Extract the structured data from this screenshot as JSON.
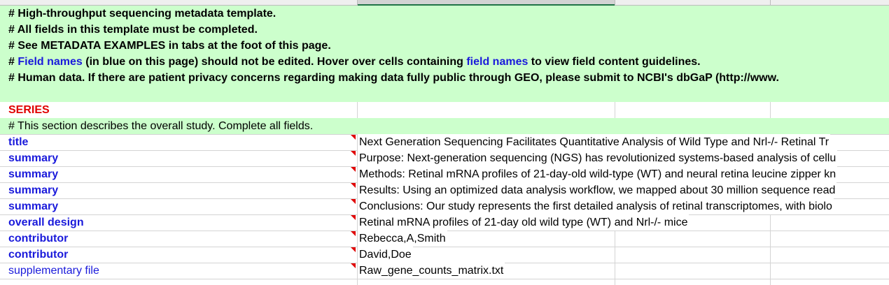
{
  "notes": [
    [
      "# High-throughput sequencing metadata template."
    ],
    [
      "# All fields in this template must be completed."
    ],
    [
      "# See METADATA EXAMPLES in tabs at the foot of this page."
    ],
    [
      "# ",
      "Field names",
      " (in blue on this page) should not be edited. Hover over cells containing ",
      "field names",
      " to view field content guidelines."
    ],
    [
      "# Human data. If there are patient privacy concerns regarding making data fully public through GEO, please submit to NCBI's dbGaP (http://www."
    ]
  ],
  "section": "SERIES",
  "section_note": "# This section describes the overall study. Complete all fields.",
  "fields": [
    {
      "name": "title",
      "value": "Next Generation Sequencing Facilitates Quantitative Analysis of Wild Type and Nrl-/- Retinal Tr"
    },
    {
      "name": "summary",
      "value": "Purpose: Next-generation sequencing (NGS) has revolutionized systems-based analysis of cellu"
    },
    {
      "name": "summary",
      "value": "Methods: Retinal mRNA profiles of 21-day-old wild-type (WT) and neural retina leucine zipper kn"
    },
    {
      "name": "summary",
      "value": "Results: Using an optimized data analysis workflow, we mapped about 30 million sequence read"
    },
    {
      "name": "summary",
      "value": "Conclusions: Our study represents the first detailed analysis of retinal transcriptomes, with biolo"
    },
    {
      "name": "overall design",
      "value": "Retinal mRNA profiles of 21-day old wild type (WT) and Nrl-/- mice"
    },
    {
      "name": "contributor",
      "value": "Rebecca,A,Smith"
    },
    {
      "name": "contributor",
      "value": "David,Doe"
    },
    {
      "name": "supplementary file",
      "value": "Raw_gene_counts_matrix.txt"
    }
  ]
}
